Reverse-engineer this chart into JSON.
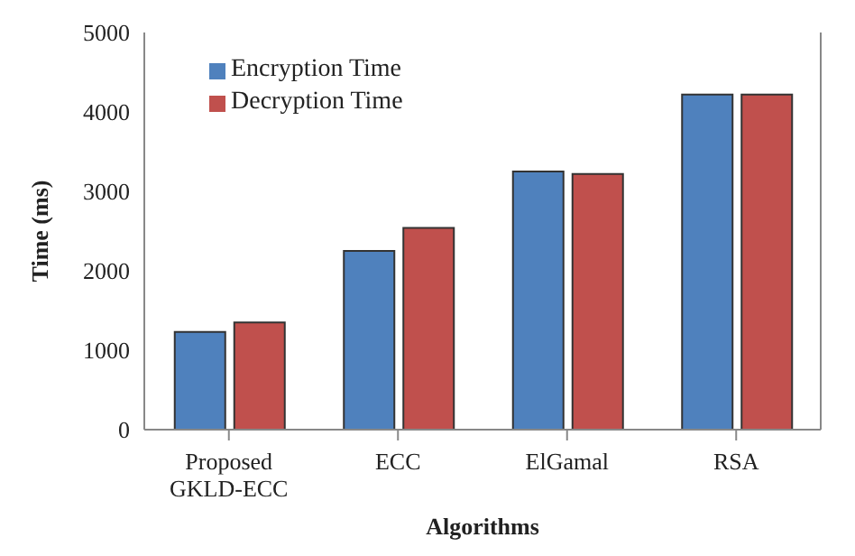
{
  "chart_data": {
    "type": "bar",
    "xlabel": "Algorithms",
    "ylabel": "Time (ms)",
    "categories": [
      "Proposed GKLD-ECC",
      "ECC",
      "ElGamal",
      "RSA"
    ],
    "series": [
      {
        "name": "Encryption Time",
        "color": "#4f81bd",
        "values": [
          1230,
          2250,
          3250,
          4220
        ]
      },
      {
        "name": "Decryption Time",
        "color": "#c0504d",
        "values": [
          1350,
          2540,
          3220,
          4220
        ]
      }
    ],
    "ylim": [
      0,
      5000
    ],
    "yticks": [
      0,
      1000,
      2000,
      3000,
      4000,
      5000
    ],
    "grid": false,
    "legend": "top left"
  }
}
